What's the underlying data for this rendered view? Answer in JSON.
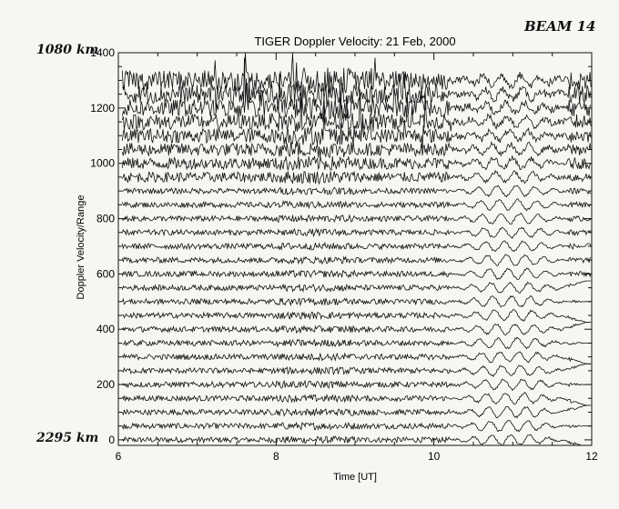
{
  "annotations": {
    "beam": "BEAM 14",
    "top_range": "1080 km",
    "bottom_range": "2295 km"
  },
  "chart_data": {
    "type": "line",
    "title": "TIGER Doppler Velocity: 21 Feb, 2000",
    "xlabel": "Time [UT]",
    "ylabel": "Doppler Velocity/Range",
    "xlim": [
      6,
      12
    ],
    "ylim": [
      -20,
      1400
    ],
    "x_ticks": [
      6,
      8,
      10,
      12
    ],
    "y_ticks": [
      0,
      200,
      400,
      600,
      800,
      1000,
      1200,
      1400
    ],
    "grid": false,
    "series": [
      {
        "offset": 0
      },
      {
        "offset": 50
      },
      {
        "offset": 100
      },
      {
        "offset": 150
      },
      {
        "offset": 200
      },
      {
        "offset": 250
      },
      {
        "offset": 300
      },
      {
        "offset": 350
      },
      {
        "offset": 400
      },
      {
        "offset": 450
      },
      {
        "offset": 500
      },
      {
        "offset": 550
      },
      {
        "offset": 600
      },
      {
        "offset": 650
      },
      {
        "offset": 700
      },
      {
        "offset": 750
      },
      {
        "offset": 800
      },
      {
        "offset": 850
      },
      {
        "offset": 900
      },
      {
        "offset": 950
      },
      {
        "offset": 1000
      },
      {
        "offset": 1050
      },
      {
        "offset": 1100
      },
      {
        "offset": 1150
      },
      {
        "offset": 1200
      },
      {
        "offset": 1250
      },
      {
        "offset": 1300
      }
    ],
    "line_color": "#111111"
  }
}
